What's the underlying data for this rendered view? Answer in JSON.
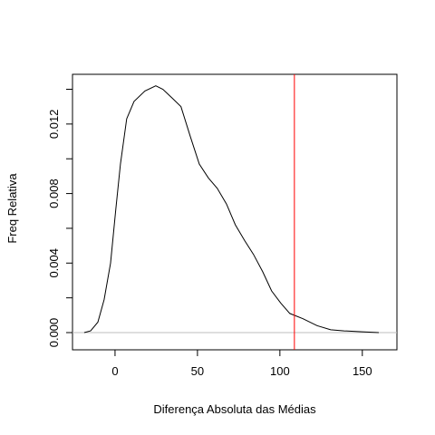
{
  "chart_data": {
    "type": "line",
    "xlabel": "Diferença Absoluta das Médias",
    "ylabel": "Freq Relativa",
    "x": [
      -18.7,
      -14.8,
      -10.4,
      -6.6,
      -2.7,
      0.5,
      3.3,
      7.1,
      11.5,
      18.1,
      24.7,
      29,
      34.6,
      40,
      45.6,
      51.1,
      56.6,
      62,
      67.6,
      73,
      78.6,
      84,
      89.6,
      95,
      100.5,
      106,
      114,
      122.5,
      130.8,
      139,
      150,
      160
    ],
    "values": [
      0,
      0.0001,
      0.0006,
      0.0019,
      0.004,
      0.0071,
      0.0097,
      0.0123,
      0.0133,
      0.0139,
      0.0142,
      0.014,
      0.0135,
      0.013,
      0.0113,
      0.0097,
      0.0089,
      0.0083,
      0.0074,
      0.0062,
      0.0053,
      0.0045,
      0.0035,
      0.0024,
      0.0017,
      0.0011,
      0.0008,
      0.0004,
      0.00016,
      0.0001,
      5e-05,
      0
    ],
    "color": "#000000",
    "xlim": [
      -25.8,
      171
    ],
    "ylim": [
      -0.00099,
      0.01486
    ],
    "xticks": [
      0,
      50,
      100,
      150
    ],
    "yticks": [
      {
        "value": 0,
        "label": "0.000"
      },
      {
        "value": 0.004,
        "label": "0.004"
      },
      {
        "value": 0.008,
        "label": "0.008"
      },
      {
        "value": 0.012,
        "label": "0.012"
      }
    ],
    "yminor_ticks": [
      0.002,
      0.006,
      0.01,
      0.014
    ],
    "vline": 108.8,
    "vline_color": "#ff0000",
    "hline": 0,
    "hline_color": "#bebebe"
  }
}
